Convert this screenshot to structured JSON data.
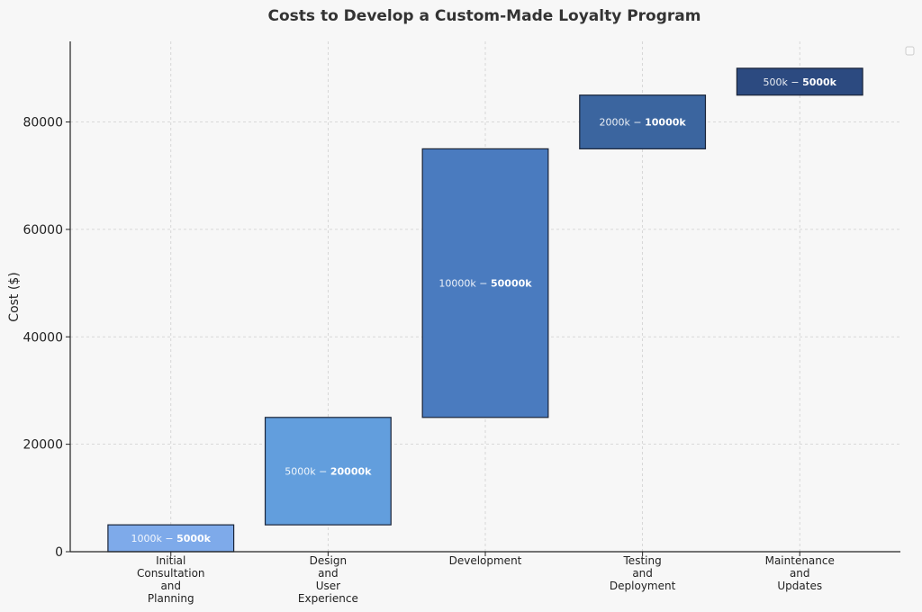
{
  "chart_data": {
    "type": "bar",
    "subtype": "floating-bar",
    "title": "Costs to Develop a Custom-Made Loyalty Program",
    "xlabel": "",
    "ylabel": "Cost ($)",
    "ylim": [
      0,
      95000
    ],
    "yticks": [
      0,
      20000,
      40000,
      60000,
      80000
    ],
    "grid": true,
    "legend": "top-right (empty)",
    "categories": [
      [
        "Initial",
        "Consultation",
        "and",
        "Planning"
      ],
      [
        "Design",
        "and",
        "User",
        "Experience"
      ],
      [
        "Development"
      ],
      [
        "Testing",
        "and",
        "Deployment"
      ],
      [
        "Maintenance",
        "and",
        "Updates"
      ]
    ],
    "bottoms": [
      0,
      5000,
      25000,
      75000,
      85000
    ],
    "tops": [
      5000,
      25000,
      75000,
      85000,
      90000
    ],
    "labels": [
      {
        "low": "1000k",
        "high": "5000k"
      },
      {
        "low": "5000k",
        "high": "20000k"
      },
      {
        "low": "10000k",
        "high": "50000k"
      },
      {
        "low": "2000k",
        "high": "10000k"
      },
      {
        "low": "500k",
        "high": "5000k"
      }
    ],
    "label_separator": " − ",
    "colors": [
      "#7eaaea",
      "#629edd",
      "#4a7bbf",
      "#3b659f",
      "#2c4a80"
    ]
  }
}
